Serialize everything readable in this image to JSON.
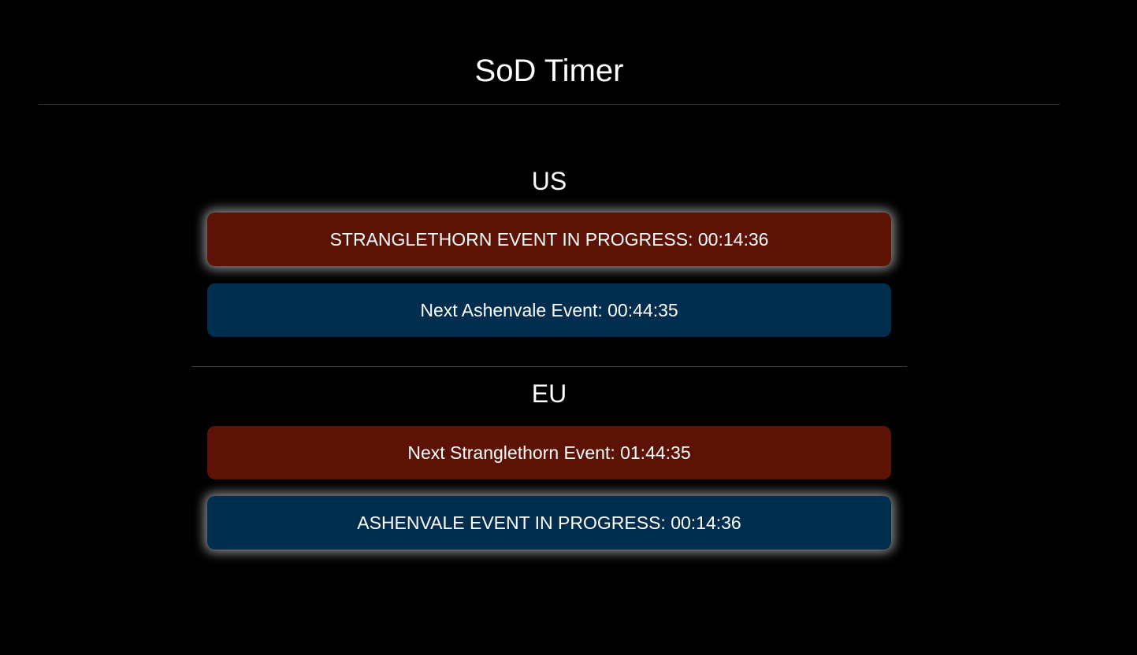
{
  "app": {
    "title": "SoD Timer"
  },
  "regions": [
    {
      "name": "US",
      "timers": [
        {
          "label": "STRANGLETHORN EVENT IN PROGRESS: 00:14:36",
          "zone": "stranglethorn",
          "active": true,
          "color": "#5c1305"
        },
        {
          "label": "Next Ashenvale Event: 00:44:35",
          "zone": "ashenvale",
          "active": false,
          "color": "#012d4f"
        }
      ]
    },
    {
      "name": "EU",
      "timers": [
        {
          "label": "Next Stranglethorn Event: 01:44:35",
          "zone": "stranglethorn",
          "active": false,
          "color": "#5c1305"
        },
        {
          "label": "ASHENVALE EVENT IN PROGRESS: 00:14:36",
          "zone": "ashenvale",
          "active": true,
          "color": "#012d4f"
        }
      ]
    }
  ],
  "colors": {
    "background": "#000000",
    "stranglethorn": "#5c1305",
    "ashenvale": "#012d4f",
    "text": "#ffffff"
  }
}
